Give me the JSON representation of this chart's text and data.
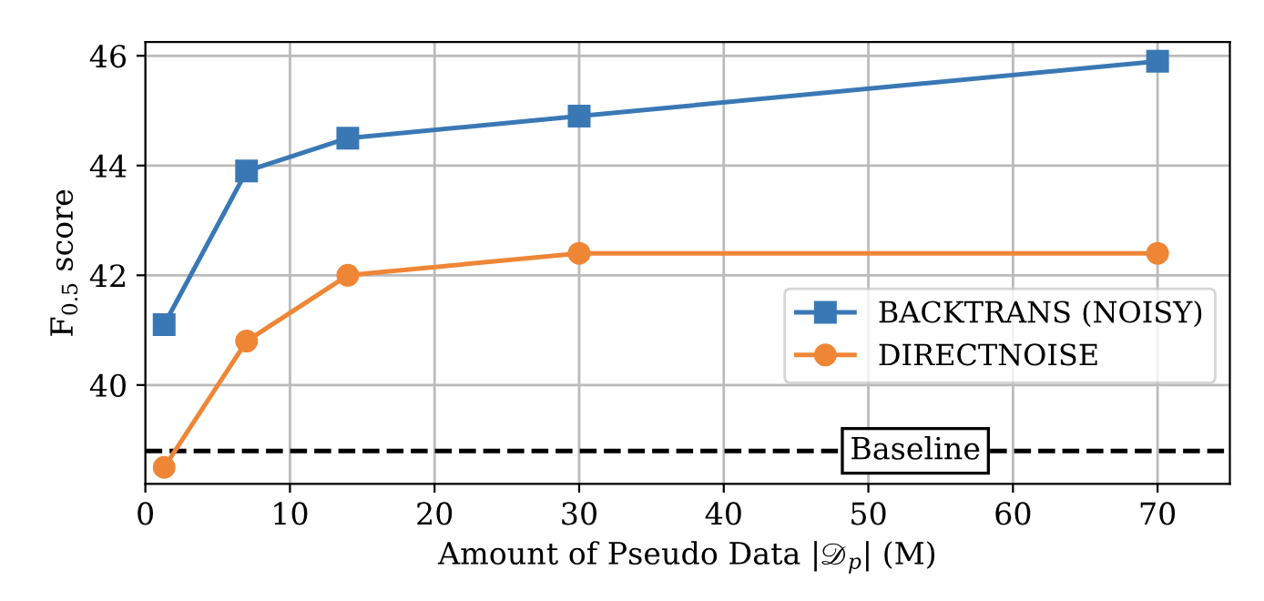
{
  "chart_data": {
    "type": "line",
    "xlabel": "Amount of Pseudo Data |𝒟$_{p}$| (M)",
    "ylabel": "F$_{0.5}$ score",
    "x": [
      1.3,
      7,
      14,
      30,
      70
    ],
    "series": [
      {
        "name": "BACKTRANS (NOISY)",
        "color": "#3a78b5",
        "values": [
          41.1,
          43.9,
          44.5,
          44.9,
          45.9
        ],
        "marker": "square"
      },
      {
        "name": "DIRECTNOISE",
        "color": "#ef8636",
        "values": [
          38.5,
          40.8,
          42.0,
          42.4,
          42.4
        ],
        "marker": "circle"
      }
    ],
    "xlim": [
      0,
      75
    ],
    "xticks": [
      0,
      10,
      20,
      30,
      40,
      50,
      60,
      70
    ],
    "ylim": [
      38.2,
      46.25
    ],
    "yticks": [
      40,
      42,
      44,
      46
    ],
    "ref_lines": [
      {
        "axis": "y",
        "value": 38.8,
        "label": "Baseline",
        "color": "#000000",
        "line_style": "dashed"
      }
    ],
    "grid": true,
    "legend": "right",
    "line_style": "solid"
  }
}
